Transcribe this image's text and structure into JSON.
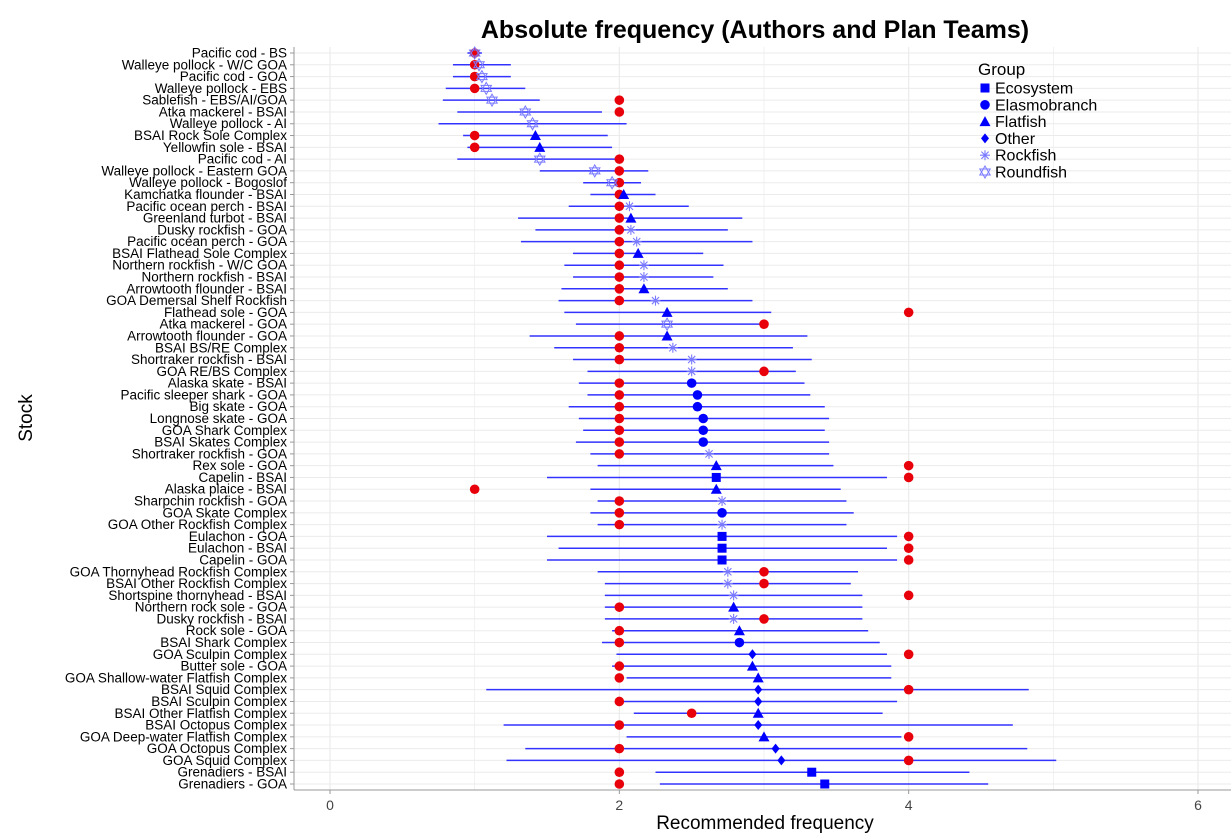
{
  "chart_data": {
    "type": "scatter",
    "title": "Absolute frequency (Authors and Plan Teams)",
    "xlabel": "Recommended frequency",
    "ylabel": "Stock",
    "xlim": [
      0,
      6
    ],
    "xticks": [
      0,
      2,
      4,
      6
    ],
    "grid": true,
    "legend": {
      "title": "Group",
      "position": "top-right",
      "entries": [
        {
          "name": "Ecosystem",
          "marker": "square"
        },
        {
          "name": "Elasmobranch",
          "marker": "circle"
        },
        {
          "name": "Flatfish",
          "marker": "triangle"
        },
        {
          "name": "Other",
          "marker": "diamond"
        },
        {
          "name": "Rockfish",
          "marker": "asterisk"
        },
        {
          "name": "Roundfish",
          "marker": "star-of-david"
        }
      ]
    },
    "colors": {
      "model": "#0000ff",
      "errorbar": "#3333ff",
      "recommended": "#e8000b",
      "grid": "#ebebeb",
      "axis": "#999999"
    },
    "stocks": [
      {
        "name": "Pacific cod - BS",
        "group": "Roundfish",
        "estimate": 1.0,
        "low": 0.95,
        "high": 1.05,
        "recommended": [
          1
        ]
      },
      {
        "name": "Walleye pollock - W/C GOA",
        "group": "Roundfish",
        "estimate": 1.03,
        "low": 0.85,
        "high": 1.25,
        "recommended": [
          1
        ]
      },
      {
        "name": "Pacific cod - GOA",
        "group": "Roundfish",
        "estimate": 1.05,
        "low": 0.85,
        "high": 1.25,
        "recommended": [
          1
        ]
      },
      {
        "name": "Walleye pollock - EBS",
        "group": "Roundfish",
        "estimate": 1.08,
        "low": 0.8,
        "high": 1.35,
        "recommended": [
          1
        ]
      },
      {
        "name": "Sablefish - EBS/AI/GOA",
        "group": "Roundfish",
        "estimate": 1.12,
        "low": 0.78,
        "high": 1.45,
        "recommended": [
          2
        ]
      },
      {
        "name": "Atka mackerel - BSAI",
        "group": "Roundfish",
        "estimate": 1.35,
        "low": 0.88,
        "high": 1.88,
        "recommended": [
          2
        ]
      },
      {
        "name": "Walleye pollock - AI",
        "group": "Roundfish",
        "estimate": 1.4,
        "low": 0.75,
        "high": 2.05,
        "recommended": []
      },
      {
        "name": "BSAI Rock Sole Complex",
        "group": "Flatfish",
        "estimate": 1.42,
        "low": 0.92,
        "high": 1.92,
        "recommended": [
          1
        ]
      },
      {
        "name": "Yellowfin sole - BSAI",
        "group": "Flatfish",
        "estimate": 1.45,
        "low": 0.95,
        "high": 1.95,
        "recommended": [
          1
        ]
      },
      {
        "name": "Pacific cod - AI",
        "group": "Roundfish",
        "estimate": 1.45,
        "low": 0.88,
        "high": 2.02,
        "recommended": [
          2
        ]
      },
      {
        "name": "Walleye pollock - Eastern GOA",
        "group": "Roundfish",
        "estimate": 1.83,
        "low": 1.45,
        "high": 2.2,
        "recommended": [
          2
        ]
      },
      {
        "name": "Walleye pollock - Bogoslof",
        "group": "Roundfish",
        "estimate": 1.95,
        "low": 1.75,
        "high": 2.15,
        "recommended": [
          2
        ]
      },
      {
        "name": "Kamchatka flounder - BSAI",
        "group": "Flatfish",
        "estimate": 2.03,
        "low": 1.8,
        "high": 2.25,
        "recommended": [
          2
        ]
      },
      {
        "name": "Pacific ocean perch - BSAI",
        "group": "Rockfish",
        "estimate": 2.07,
        "low": 1.65,
        "high": 2.48,
        "recommended": [
          2
        ]
      },
      {
        "name": "Greenland turbot - BSAI",
        "group": "Flatfish",
        "estimate": 2.08,
        "low": 1.3,
        "high": 2.85,
        "recommended": [
          2
        ]
      },
      {
        "name": "Dusky rockfish - GOA",
        "group": "Rockfish",
        "estimate": 2.08,
        "low": 1.42,
        "high": 2.75,
        "recommended": [
          2
        ]
      },
      {
        "name": "Pacific ocean perch - GOA",
        "group": "Rockfish",
        "estimate": 2.12,
        "low": 1.32,
        "high": 2.92,
        "recommended": [
          2
        ]
      },
      {
        "name": "BSAI Flathead Sole Complex",
        "group": "Flatfish",
        "estimate": 2.13,
        "low": 1.68,
        "high": 2.58,
        "recommended": [
          2
        ]
      },
      {
        "name": "Northern rockfish - W/C GOA",
        "group": "Rockfish",
        "estimate": 2.17,
        "low": 1.62,
        "high": 2.72,
        "recommended": [
          2
        ]
      },
      {
        "name": "Northern rockfish - BSAI",
        "group": "Rockfish",
        "estimate": 2.17,
        "low": 1.68,
        "high": 2.65,
        "recommended": [
          2
        ]
      },
      {
        "name": "Arrowtooth flounder - BSAI",
        "group": "Flatfish",
        "estimate": 2.17,
        "low": 1.6,
        "high": 2.75,
        "recommended": [
          2
        ]
      },
      {
        "name": "GOA Demersal Shelf Rockfish",
        "group": "Rockfish",
        "estimate": 2.25,
        "low": 1.58,
        "high": 2.92,
        "recommended": [
          2
        ]
      },
      {
        "name": "Flathead sole - GOA",
        "group": "Flatfish",
        "estimate": 2.33,
        "low": 1.62,
        "high": 3.05,
        "recommended": [
          4
        ]
      },
      {
        "name": "Atka mackerel - GOA",
        "group": "Roundfish",
        "estimate": 2.33,
        "low": 1.7,
        "high": 2.97,
        "recommended": [
          3
        ]
      },
      {
        "name": "Arrowtooth flounder - GOA",
        "group": "Flatfish",
        "estimate": 2.33,
        "low": 1.38,
        "high": 3.3,
        "recommended": [
          2
        ]
      },
      {
        "name": "BSAI BS/RE Complex",
        "group": "Rockfish",
        "estimate": 2.37,
        "low": 1.55,
        "high": 3.2,
        "recommended": [
          2
        ]
      },
      {
        "name": "Shortraker rockfish - BSAI",
        "group": "Rockfish",
        "estimate": 2.5,
        "low": 1.68,
        "high": 3.33,
        "recommended": [
          2
        ]
      },
      {
        "name": "GOA RE/BS Complex",
        "group": "Rockfish",
        "estimate": 2.5,
        "low": 1.78,
        "high": 3.22,
        "recommended": [
          3
        ]
      },
      {
        "name": "Alaska skate - BSAI",
        "group": "Elasmobranch",
        "estimate": 2.5,
        "low": 1.72,
        "high": 3.28,
        "recommended": [
          2
        ]
      },
      {
        "name": "Pacific sleeper shark - GOA",
        "group": "Elasmobranch",
        "estimate": 2.54,
        "low": 1.78,
        "high": 3.32,
        "recommended": [
          2
        ]
      },
      {
        "name": "Big skate - GOA",
        "group": "Elasmobranch",
        "estimate": 2.54,
        "low": 1.65,
        "high": 3.42,
        "recommended": [
          2
        ]
      },
      {
        "name": "Longnose skate - GOA",
        "group": "Elasmobranch",
        "estimate": 2.58,
        "low": 1.72,
        "high": 3.45,
        "recommended": [
          2
        ]
      },
      {
        "name": "GOA Shark Complex",
        "group": "Elasmobranch",
        "estimate": 2.58,
        "low": 1.75,
        "high": 3.42,
        "recommended": [
          2
        ]
      },
      {
        "name": "BSAI Skates Complex",
        "group": "Elasmobranch",
        "estimate": 2.58,
        "low": 1.7,
        "high": 3.45,
        "recommended": [
          2
        ]
      },
      {
        "name": "Shortraker rockfish - GOA",
        "group": "Rockfish",
        "estimate": 2.62,
        "low": 1.8,
        "high": 3.45,
        "recommended": [
          2
        ]
      },
      {
        "name": "Rex sole - GOA",
        "group": "Flatfish",
        "estimate": 2.67,
        "low": 1.85,
        "high": 3.48,
        "recommended": [
          4
        ]
      },
      {
        "name": "Capelin - BSAI",
        "group": "Ecosystem",
        "estimate": 2.67,
        "low": 1.5,
        "high": 3.85,
        "recommended": [
          4
        ]
      },
      {
        "name": "Alaska plaice - BSAI",
        "group": "Flatfish",
        "estimate": 2.67,
        "low": 1.8,
        "high": 3.53,
        "recommended": [
          1
        ]
      },
      {
        "name": "Sharpchin rockfish - GOA",
        "group": "Rockfish",
        "estimate": 2.71,
        "low": 1.85,
        "high": 3.57,
        "recommended": [
          2
        ]
      },
      {
        "name": "GOA Skate Complex",
        "group": "Elasmobranch",
        "estimate": 2.71,
        "low": 1.8,
        "high": 3.62,
        "recommended": [
          2
        ]
      },
      {
        "name": "GOA Other Rockfish Complex",
        "group": "Rockfish",
        "estimate": 2.71,
        "low": 1.85,
        "high": 3.57,
        "recommended": [
          2
        ]
      },
      {
        "name": "Eulachon - GOA",
        "group": "Ecosystem",
        "estimate": 2.71,
        "low": 1.5,
        "high": 3.92,
        "recommended": [
          4
        ]
      },
      {
        "name": "Eulachon - BSAI",
        "group": "Ecosystem",
        "estimate": 2.71,
        "low": 1.58,
        "high": 3.85,
        "recommended": [
          4
        ]
      },
      {
        "name": "Capelin - GOA",
        "group": "Ecosystem",
        "estimate": 2.71,
        "low": 1.5,
        "high": 3.92,
        "recommended": [
          4
        ]
      },
      {
        "name": "GOA Thornyhead Rockfish Complex",
        "group": "Rockfish",
        "estimate": 2.75,
        "low": 1.85,
        "high": 3.65,
        "recommended": [
          3
        ]
      },
      {
        "name": "BSAI Other Rockfish Complex",
        "group": "Rockfish",
        "estimate": 2.75,
        "low": 1.9,
        "high": 3.6,
        "recommended": [
          3
        ]
      },
      {
        "name": "Shortspine thornyhead - BSAI",
        "group": "Rockfish",
        "estimate": 2.79,
        "low": 1.9,
        "high": 3.68,
        "recommended": [
          4
        ]
      },
      {
        "name": "Northern rock sole - GOA",
        "group": "Flatfish",
        "estimate": 2.79,
        "low": 1.9,
        "high": 3.68,
        "recommended": [
          2
        ]
      },
      {
        "name": "Dusky rockfish - BSAI",
        "group": "Rockfish",
        "estimate": 2.79,
        "low": 1.9,
        "high": 3.68,
        "recommended": [
          3
        ]
      },
      {
        "name": "Rock sole - GOA",
        "group": "Flatfish",
        "estimate": 2.83,
        "low": 1.95,
        "high": 3.72,
        "recommended": [
          2
        ]
      },
      {
        "name": "BSAI Shark Complex",
        "group": "Elasmobranch",
        "estimate": 2.83,
        "low": 1.88,
        "high": 3.8,
        "recommended": [
          2
        ]
      },
      {
        "name": "GOA Sculpin Complex",
        "group": "Other",
        "estimate": 2.92,
        "low": 1.98,
        "high": 3.85,
        "recommended": [
          4
        ]
      },
      {
        "name": "Butter sole - GOA",
        "group": "Flatfish",
        "estimate": 2.92,
        "low": 1.95,
        "high": 3.88,
        "recommended": [
          2
        ]
      },
      {
        "name": "GOA Shallow-water Flatfish Complex",
        "group": "Flatfish",
        "estimate": 2.96,
        "low": 2.05,
        "high": 3.88,
        "recommended": [
          2
        ]
      },
      {
        "name": "BSAI Squid Complex",
        "group": "Other",
        "estimate": 2.96,
        "low": 1.08,
        "high": 4.83,
        "recommended": [
          4
        ]
      },
      {
        "name": "BSAI Sculpin Complex",
        "group": "Other",
        "estimate": 2.96,
        "low": 2.0,
        "high": 3.92,
        "recommended": [
          2
        ]
      },
      {
        "name": "BSAI Other Flatfish Complex",
        "group": "Flatfish",
        "estimate": 2.96,
        "low": 2.1,
        "high": 3.82,
        "recommended": [
          2.5
        ]
      },
      {
        "name": "BSAI Octopus Complex",
        "group": "Other",
        "estimate": 2.96,
        "low": 1.2,
        "high": 4.72,
        "recommended": [
          2
        ]
      },
      {
        "name": "GOA Deep-water Flatfish Complex",
        "group": "Flatfish",
        "estimate": 3.0,
        "low": 2.05,
        "high": 3.95,
        "recommended": [
          4
        ]
      },
      {
        "name": "GOA Octopus Complex",
        "group": "Other",
        "estimate": 3.08,
        "low": 1.35,
        "high": 4.82,
        "recommended": [
          2
        ]
      },
      {
        "name": "GOA Squid Complex",
        "group": "Other",
        "estimate": 3.12,
        "low": 1.22,
        "high": 5.02,
        "recommended": [
          4
        ]
      },
      {
        "name": "Grenadiers - BSAI",
        "group": "Ecosystem",
        "estimate": 3.33,
        "low": 2.25,
        "high": 4.42,
        "recommended": [
          2
        ]
      },
      {
        "name": "Grenadiers - GOA",
        "group": "Ecosystem",
        "estimate": 3.42,
        "low": 2.28,
        "high": 4.55,
        "recommended": [
          2
        ]
      }
    ]
  }
}
